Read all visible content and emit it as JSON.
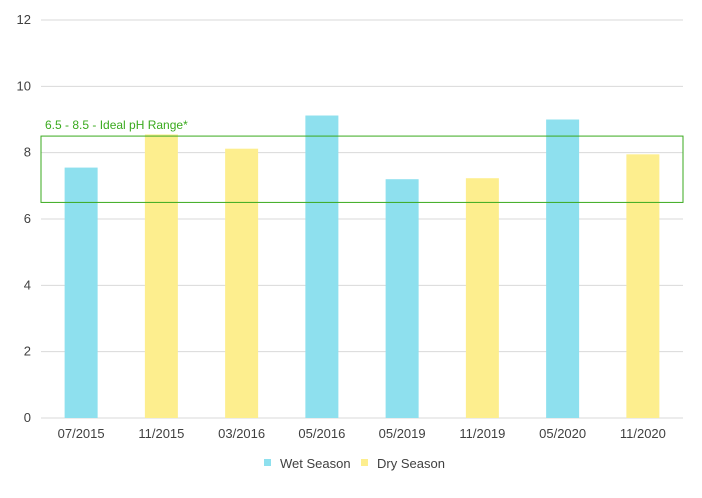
{
  "chart_data": {
    "type": "bar",
    "categories": [
      "07/2015",
      "11/2015",
      "03/2016",
      "05/2016",
      "05/2019",
      "11/2019",
      "05/2020",
      "11/2020"
    ],
    "values": [
      7.55,
      8.55,
      8.12,
      9.12,
      7.2,
      7.23,
      9.0,
      7.95
    ],
    "season": [
      "Wet Season",
      "Dry Season",
      "Dry Season",
      "Wet Season",
      "Wet Season",
      "Dry Season",
      "Wet Season",
      "Dry Season"
    ],
    "ylim": [
      0,
      12
    ],
    "yticks": [
      0,
      2,
      4,
      6,
      8,
      10,
      12
    ],
    "grid": true,
    "legend": {
      "placement": "bottom",
      "entries": [
        {
          "name": "Wet Season",
          "color": "#8ee0ee"
        },
        {
          "name": "Dry Season",
          "color": "#fdee8e"
        }
      ]
    },
    "annotation": {
      "text": "6.5 - 8.5 - Ideal pH Range*",
      "range": [
        6.5,
        8.5
      ],
      "color": "#3aaa1e"
    },
    "colors": {
      "Wet Season": "#8ee0ee",
      "Dry Season": "#fdee8e",
      "grid": "#d9d9d9",
      "text": "#404040"
    }
  }
}
